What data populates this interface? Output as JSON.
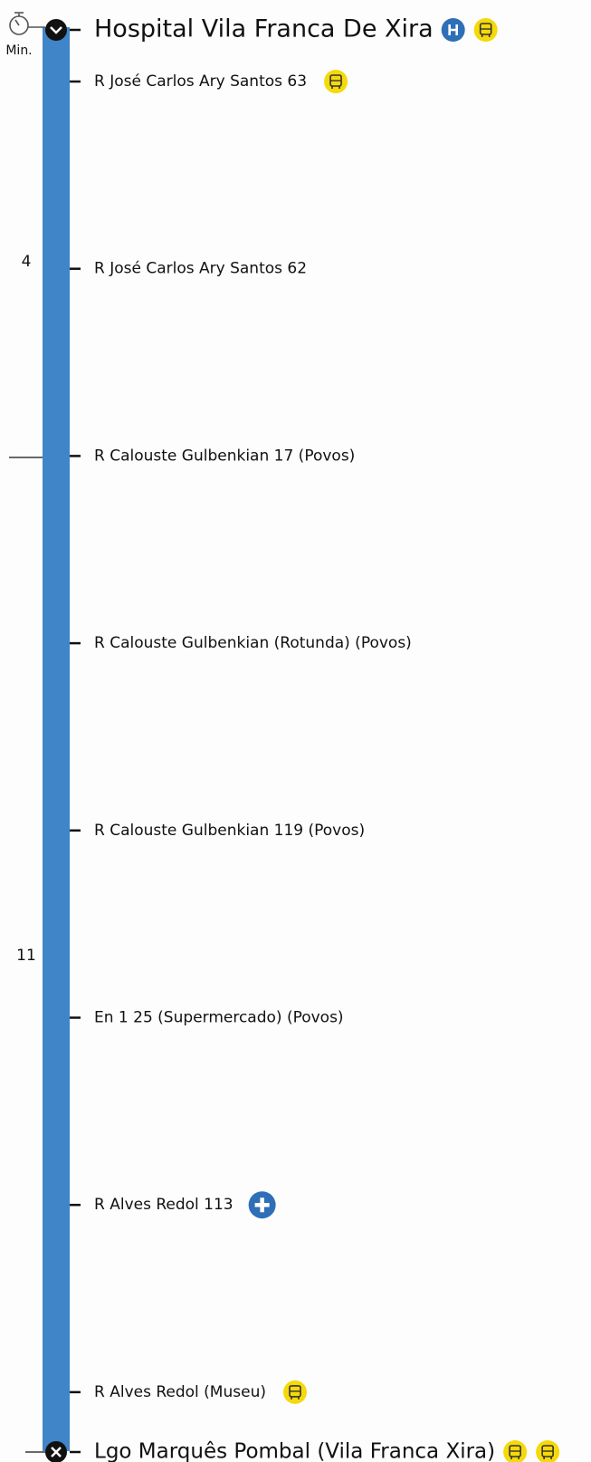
{
  "time_labels": {
    "unit": "Min.",
    "markers": [
      "4",
      "11"
    ]
  },
  "stops": [
    "Hospital Vila Franca De Xira",
    "R José Carlos Ary Santos 63",
    "R José Carlos Ary Santos 62",
    "R Calouste Gulbenkian 17 (Povos)",
    "R Calouste Gulbenkian (Rotunda) (Povos)",
    "R Calouste Gulbenkian 119 (Povos)",
    "En 1 25 (Supermercado) (Povos)",
    "R Alves Redol 113",
    "R Alves Redol (Museu)",
    "Lgo Marquês Pombal (Vila Franca Xira)"
  ]
}
